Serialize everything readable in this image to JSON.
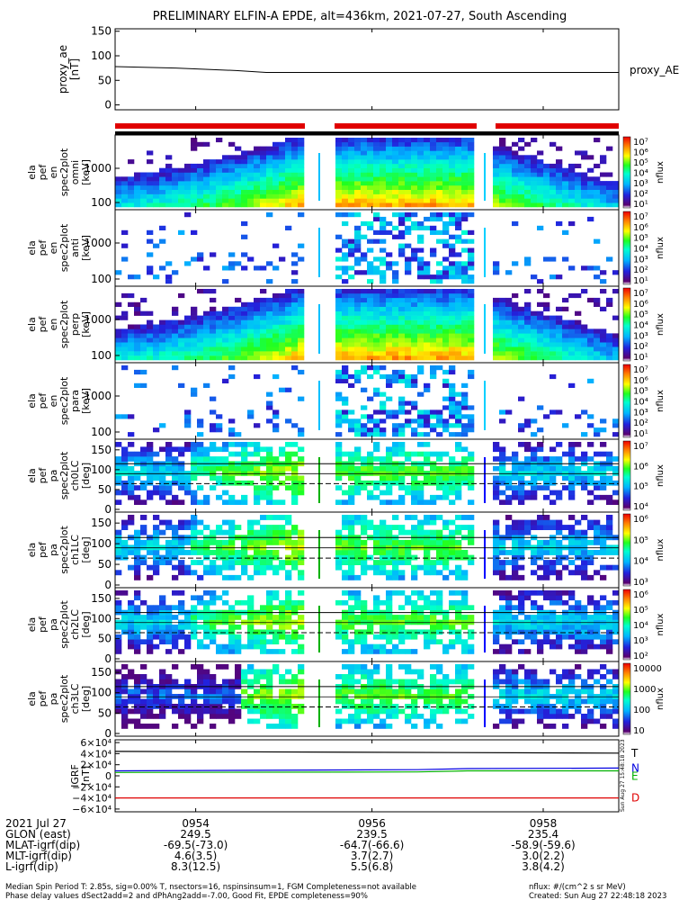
{
  "title": "PRELIMINARY ELFIN-A EPDE, alt=436km, 2021-07-27, South Ascending",
  "colors": {
    "red_bar": "#e00000",
    "black_bar": "#000000",
    "line": "#000000",
    "bz_red": "#e00000",
    "bz_green": "#00b000",
    "bz_blue": "#0000e0"
  },
  "chart_data": [
    {
      "type": "line",
      "name": "proxy_ae",
      "ylabel_lines": [
        "proxy_ae",
        "[nT]"
      ],
      "ylim": [
        -10,
        155
      ],
      "yticks": [
        "150",
        "100",
        "50",
        "0"
      ],
      "ytick_values": [
        150,
        100,
        50,
        0
      ],
      "legend": "proxy_AE",
      "series": [
        {
          "name": "proxy_AE",
          "x": [
            0,
            0.12,
            0.24,
            0.3,
            1.0
          ],
          "values": [
            78,
            75,
            70,
            66,
            66
          ]
        }
      ]
    },
    {
      "type": "heatmap",
      "name": "spec-en-1",
      "ylabel_lines": [
        "ela",
        "pef",
        "en",
        "spec2plot",
        "omni",
        "[keV]"
      ],
      "ylog": true,
      "yticks": [
        "1000",
        "100"
      ],
      "colorbar_label": "nflux",
      "colorbar_ticks": [
        "10⁷",
        "10⁶",
        "10⁵",
        "10⁴",
        "10³",
        "10²",
        "10¹"
      ]
    },
    {
      "type": "heatmap",
      "name": "spec-en-2",
      "ylabel_lines": [
        "ela",
        "pef",
        "en",
        "spec2plot",
        "anti",
        "[keV]"
      ],
      "ylog": true,
      "yticks": [
        "1000",
        "100"
      ],
      "colorbar_label": "nflux",
      "colorbar_ticks": [
        "10⁷",
        "10⁶",
        "10⁵",
        "10⁴",
        "10³",
        "10²",
        "10¹"
      ]
    },
    {
      "type": "heatmap",
      "name": "spec-en-3",
      "ylabel_lines": [
        "ela",
        "pef",
        "en",
        "spec2plot",
        "perp",
        "[keV]"
      ],
      "ylog": true,
      "yticks": [
        "1000",
        "100"
      ],
      "colorbar_label": "nflux",
      "colorbar_ticks": [
        "10⁷",
        "10⁶",
        "10⁵",
        "10⁴",
        "10³",
        "10²",
        "10¹"
      ]
    },
    {
      "type": "heatmap",
      "name": "spec-en-4",
      "ylabel_lines": [
        "ela",
        "pef",
        "en",
        "spec2plot",
        "para",
        "[keV]"
      ],
      "ylog": true,
      "yticks": [
        "1000",
        "100"
      ],
      "colorbar_label": "nflux",
      "colorbar_ticks": [
        "10⁷",
        "10⁶",
        "10⁵",
        "10⁴",
        "10³",
        "10²",
        "10¹"
      ]
    },
    {
      "type": "heatmap",
      "name": "spec-pa-ch0",
      "ylabel_lines": [
        "ela",
        "pef",
        "pa",
        "spec2plot",
        "ch0LC",
        "[deg]"
      ],
      "yticks": [
        "150",
        "100",
        "50",
        "0"
      ],
      "colorbar_label": "nflux",
      "colorbar_ticks": [
        "10⁷",
        "10⁶",
        "10⁵",
        "10⁴"
      ]
    },
    {
      "type": "heatmap",
      "name": "spec-pa-ch1",
      "ylabel_lines": [
        "ela",
        "pef",
        "pa",
        "spec2plot",
        "ch1LC",
        "[deg]"
      ],
      "yticks": [
        "150",
        "100",
        "50",
        "0"
      ],
      "colorbar_label": "nflux",
      "colorbar_ticks": [
        "10⁶",
        "10⁵",
        "10⁴",
        "10³"
      ]
    },
    {
      "type": "heatmap",
      "name": "spec-pa-ch2",
      "ylabel_lines": [
        "ela",
        "pef",
        "pa",
        "spec2plot",
        "ch2LC",
        "[deg]"
      ],
      "yticks": [
        "150",
        "100",
        "50",
        "0"
      ],
      "colorbar_label": "nflux",
      "colorbar_ticks": [
        "10⁶",
        "10⁵",
        "10⁴",
        "10³",
        "10²"
      ]
    },
    {
      "type": "heatmap",
      "name": "spec-pa-ch3",
      "ylabel_lines": [
        "ela",
        "pef",
        "pa",
        "spec2plot",
        "ch3LC",
        "[deg]"
      ],
      "yticks": [
        "150",
        "100",
        "50",
        "0"
      ],
      "colorbar_label": "nflux",
      "colorbar_ticks": [
        "10000",
        "1000",
        "100",
        "10"
      ]
    },
    {
      "type": "line",
      "name": "igrf",
      "ylabel_lines": [
        "IGRF",
        "[nT]"
      ],
      "ylim": [
        -65000,
        65000
      ],
      "yticks": [
        "6×10⁴",
        "4×10⁴",
        "2×10⁴",
        "0",
        "−2×10⁴",
        "−4×10⁴",
        "−6×10⁴"
      ],
      "ytick_values": [
        60000,
        40000,
        20000,
        0,
        -20000,
        -40000,
        -60000
      ],
      "series": [
        {
          "name": "T",
          "x": [
            0,
            1
          ],
          "values": [
            44000,
            41000
          ]
        },
        {
          "name": "N",
          "x": [
            0,
            0.6,
            0.7,
            1
          ],
          "values": [
            9000,
            11000,
            13000,
            14000
          ]
        },
        {
          "name": "E",
          "x": [
            0,
            0.6,
            0.7,
            1
          ],
          "values": [
            6000,
            7000,
            9000,
            9000
          ]
        },
        {
          "name": "D",
          "x": [
            0,
            1
          ],
          "values": [
            -40000,
            -40000
          ]
        }
      ],
      "series_labels": [
        "T",
        "N",
        "E",
        "D"
      ]
    }
  ],
  "time_ticks": [
    "0954",
    "0956",
    "0958"
  ],
  "ephemeris": {
    "date_label": "2021 Jul 27",
    "rows": [
      {
        "label": "GLON (east)",
        "values": [
          "249.5",
          "239.5",
          "235.4"
        ]
      },
      {
        "label": "MLAT-igrf(dip)",
        "values": [
          "-69.5(-73.0)",
          "-64.7(-66.6)",
          "-58.9(-59.6)"
        ]
      },
      {
        "label": "MLT-igrf(dip)",
        "values": [
          "4.6(3.5)",
          "3.7(2.7)",
          "3.0(2.2)"
        ]
      },
      {
        "label": "L-igrf(dip)",
        "values": [
          "8.3(12.5)",
          "5.5(6.8)",
          "3.8(4.2)"
        ]
      }
    ]
  },
  "footer": {
    "line1": "Median Spin Period T: 2.85s, sig=0.00% T, nsectors=16, nspinsinsum=1, FGM Completeness=not available",
    "line2": "Phase delay values dSect2add=2 and dPhAng2add=-7.00, Good Fit, EPDE completeness=90%",
    "units": "nflux: #/(cm^2 s sr MeV)",
    "created": "Created: Sun Aug 27 22:48:18 2023",
    "vertical_stamp": "Sun Aug 27 15:48:18 2023"
  }
}
